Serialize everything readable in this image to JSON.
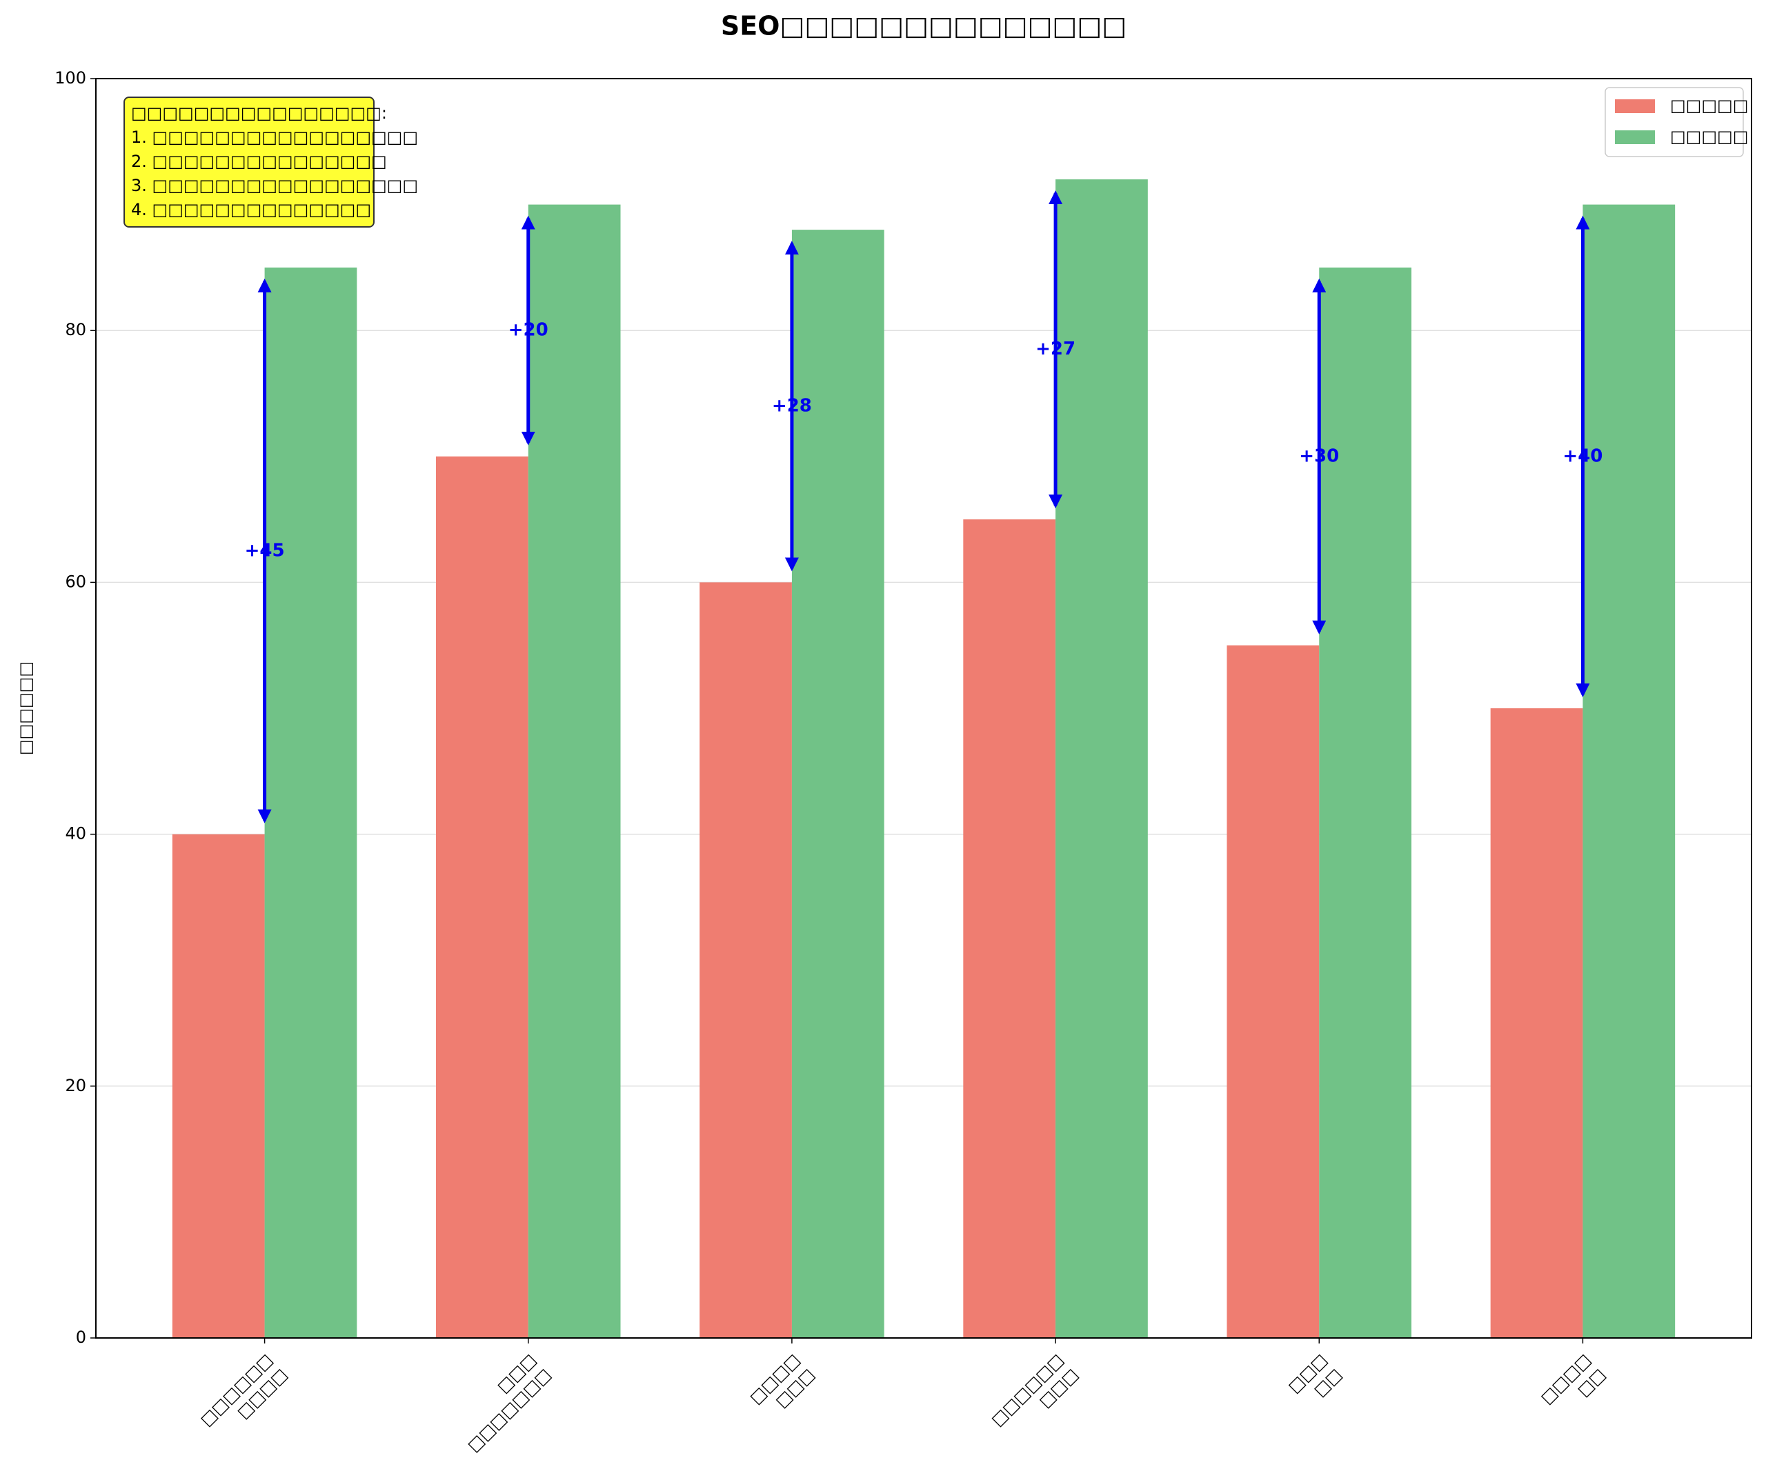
{
  "chart_data": {
    "type": "bar",
    "title": "SEO□□□□□□□□□□□□□□",
    "ylabel": "□□□□□□",
    "categories": [
      "□□□□□□\n□□□□",
      "□□□\n□□□□□□□",
      "□□□□\n□□□",
      "□□□□□□\n□□□",
      "□□□\n□□",
      "□□□□\n□□"
    ],
    "series": [
      {
        "name": "□□□□□",
        "color": "#ef7d71",
        "values": [
          40,
          70,
          60,
          65,
          55,
          50
        ]
      },
      {
        "name": "□□□□□",
        "color": "#71c287",
        "values": [
          85,
          90,
          88,
          92,
          85,
          90
        ]
      }
    ],
    "improvements": {
      "color": "#0000ee",
      "values": [
        45,
        20,
        28,
        27,
        30,
        40
      ],
      "value_labels": [
        "+45",
        "+20",
        "+28",
        "+27",
        "+30",
        "+40"
      ]
    },
    "note": [
      "□□□□□□□□□□□□□□□□:",
      "1. □□□□□□□□□□□□□□□□□",
      "2. □□□□□□□□□□□□□□□",
      "3. □□□□□□□□□□□□□□□□□",
      "4. □□□□□□□□□□□□□□"
    ],
    "ylim": [
      0,
      100
    ],
    "yticks": [
      0,
      20,
      40,
      60,
      80,
      100
    ],
    "grid": true,
    "legend": "upper right"
  }
}
